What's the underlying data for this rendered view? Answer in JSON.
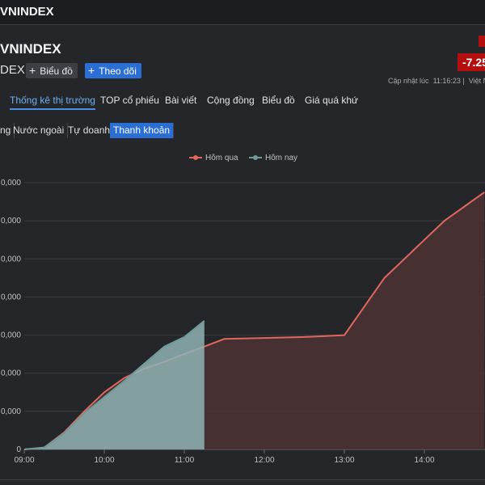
{
  "header": {
    "top_title": "VNINDEX",
    "symbol_title": "VNINDEX",
    "exchange_label": "DEX",
    "buttons": {
      "chart_label": "Biểu đồ",
      "follow_label": "Theo dõi",
      "plus_icon": "plus-icon"
    },
    "price_change": "-7.25",
    "update_label": "Cập nhật lúc",
    "update_time": "11:16:23",
    "update_suffix": "Việt N"
  },
  "tabs": [
    {
      "label": "Thống kê thị trường",
      "active": true
    },
    {
      "label": "TOP cổ phiếu",
      "active": false
    },
    {
      "label": "Bài viết",
      "active": false
    },
    {
      "label": "Cộng đồng",
      "active": false
    },
    {
      "label": "Biểu đồ",
      "active": false
    },
    {
      "label": "Giá quá khứ",
      "active": false
    }
  ],
  "subtabs": [
    {
      "label": "ng",
      "active": false
    },
    {
      "label": "Nước ngoài",
      "active": false
    },
    {
      "label": "Tự doanh",
      "active": false
    },
    {
      "label": "Thanh khoản",
      "active": true
    }
  ],
  "colors": {
    "yesterday": "#e0675f",
    "yesterday_fill": "#4a3232",
    "today": "#6f9a9a",
    "today_fill": "#8fb3b3",
    "accent": "#2c6fd4",
    "price_down": "#b30f0f"
  },
  "chart_data": {
    "type": "area",
    "series": [
      {
        "name": "Hôm qua",
        "x": [
          "09:00",
          "09:15",
          "09:30",
          "09:45",
          "10:00",
          "10:15",
          "10:30",
          "10:45",
          "11:00",
          "11:15",
          "11:30",
          "12:00",
          "12:30",
          "13:00",
          "13:15",
          "13:30",
          "13:45",
          "14:00",
          "14:15",
          "14:30",
          "14:45"
        ],
        "values": [
          0,
          2000,
          18000,
          40000,
          60000,
          75000,
          85000,
          92000,
          100000,
          108000,
          116000,
          117000,
          118000,
          120000,
          150000,
          180000,
          200000,
          220000,
          240000,
          255000,
          270000
        ]
      },
      {
        "name": "Hôm nay",
        "x": [
          "09:00",
          "09:15",
          "09:30",
          "09:45",
          "10:00",
          "10:15",
          "10:30",
          "10:45",
          "11:00",
          "11:15"
        ],
        "values": [
          0,
          2000,
          17000,
          38000,
          55000,
          72000,
          90000,
          108000,
          118000,
          135000
        ]
      }
    ],
    "x_ticks": [
      "09:00",
      "10:00",
      "11:00",
      "12:00",
      "13:00",
      "14:00"
    ],
    "y_ticks": [
      "0",
      "0,000",
      "0,000",
      "0,000",
      "0,000",
      "0,000",
      "0,000",
      "0,000"
    ],
    "xlabel": "",
    "ylabel": "",
    "legend_position": "top-center",
    "grid": true
  }
}
